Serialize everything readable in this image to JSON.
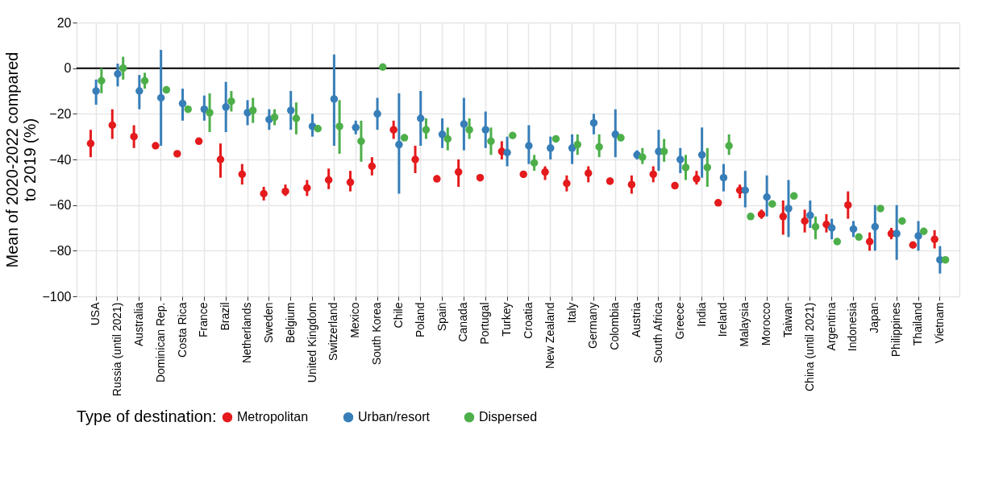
{
  "chart_data": {
    "type": "scatter",
    "ylabel": "Mean of 2020-2022 compared to 2019 (%)",
    "legend_title": "Type of destination:",
    "legend": "bottom",
    "grid": true,
    "marker": "circle",
    "ylim": [
      -100,
      20
    ],
    "yticks": [
      -100,
      -80,
      -60,
      -40,
      -20,
      0,
      20
    ],
    "ref_lines": [
      {
        "axis": "y",
        "value": 0,
        "color": "#000000"
      }
    ],
    "categories": [
      "USA",
      "Russia (until 2021)",
      "Australia",
      "Dominican Rep.",
      "Costa Rica",
      "France",
      "Brazil",
      "Netherlands",
      "Sweden",
      "Belgium",
      "United Kingdom",
      "Switzerland",
      "Mexico",
      "South Korea",
      "Chile",
      "Poland",
      "Spain",
      "Canada",
      "Portugal",
      "Turkey",
      "Croatia",
      "New Zealand",
      "Italy",
      "Germany",
      "Colombia",
      "Austria",
      "South Africa",
      "Greece",
      "India",
      "Ireland",
      "Malaysia",
      "Morocco",
      "Taiwan",
      "China (until 2021)",
      "Argentina",
      "Indonesia",
      "Japan",
      "Philippines",
      "Thailand",
      "Vietnam"
    ],
    "series": [
      {
        "name": "Metropolitan",
        "color": "#e41a1c",
        "values": [
          -33,
          -25,
          -30,
          -34,
          -37.5,
          -32,
          -40,
          -46.5,
          -55,
          -54,
          -52.5,
          -49,
          -50,
          -43,
          -27,
          -40,
          -48.5,
          -45.5,
          -48,
          -36.5,
          -46.5,
          -45.5,
          -50.5,
          -46,
          -49.5,
          -51,
          -46.5,
          -51.5,
          -48.5,
          -59,
          -53.5,
          -64,
          -65,
          -67,
          -68.5,
          -60,
          -76,
          -72.5,
          -77.5,
          -75
        ],
        "errors": [
          [
            -39,
            -27
          ],
          [
            -31,
            -18
          ],
          [
            -35,
            -25
          ],
          null,
          null,
          [
            -33,
            -31
          ],
          [
            -48,
            -33
          ],
          [
            -51,
            -42
          ],
          [
            -58,
            -52
          ],
          [
            -56,
            -51
          ],
          [
            -56,
            -49
          ],
          [
            -53,
            -44
          ],
          [
            -54,
            -45
          ],
          [
            -47,
            -39
          ],
          [
            -31,
            -23
          ],
          [
            -46,
            -34
          ],
          null,
          [
            -52,
            -40
          ],
          [
            -49,
            -47
          ],
          [
            -40,
            -32
          ],
          null,
          [
            -49,
            -43
          ],
          [
            -54,
            -47
          ],
          [
            -50,
            -43
          ],
          [
            -51,
            -48
          ],
          [
            -55,
            -47
          ],
          [
            -50,
            -43
          ],
          null,
          [
            -51,
            -45
          ],
          null,
          [
            -57,
            -51
          ],
          [
            -66,
            -62
          ],
          [
            -73,
            -58
          ],
          [
            -72,
            -62
          ],
          [
            -72,
            -64
          ],
          [
            -66,
            -54
          ],
          [
            -80,
            -72
          ],
          [
            -75,
            -70
          ],
          null,
          [
            -79,
            -71
          ]
        ]
      },
      {
        "name": "Urban/resort",
        "color": "#377eb8",
        "values": [
          -10,
          -2.5,
          -10,
          -13,
          -15.5,
          -18,
          -17,
          -19.5,
          -22.5,
          -18.5,
          -25.5,
          -13.5,
          -26,
          -20,
          -33.5,
          -22,
          -29,
          -24.5,
          -27,
          -37,
          -34,
          -35,
          -35,
          -24,
          -29,
          -38,
          -36.5,
          -40,
          -38,
          -48,
          -53.5,
          -56.5,
          -61.5,
          -64.5,
          -70,
          -70.5,
          -69.5,
          -72.5,
          -73.5,
          -84
        ],
        "errors": [
          [
            -16,
            -5
          ],
          [
            -8,
            2
          ],
          [
            -18,
            -3
          ],
          [
            -34,
            8
          ],
          [
            -23,
            -9
          ],
          [
            -23,
            -12
          ],
          [
            -28,
            -6
          ],
          [
            -25,
            -14
          ],
          [
            -27,
            -18
          ],
          [
            -27,
            -10
          ],
          [
            -30,
            -20
          ],
          [
            -34,
            6
          ],
          [
            -29,
            -23
          ],
          [
            -27,
            -13
          ],
          [
            -55,
            -11
          ],
          [
            -34,
            -10
          ],
          [
            -35,
            -22
          ],
          [
            -36,
            -13
          ],
          [
            -35,
            -19
          ],
          [
            -43,
            -30
          ],
          [
            -42,
            -25
          ],
          [
            -40,
            -30
          ],
          [
            -42,
            -29
          ],
          [
            -29,
            -20
          ],
          [
            -39,
            -18
          ],
          [
            -40,
            -36
          ],
          [
            -45,
            -27
          ],
          [
            -46,
            -35
          ],
          [
            -48,
            -26
          ],
          [
            -54,
            -42
          ],
          [
            -61,
            -45
          ],
          [
            -65,
            -47
          ],
          [
            -74,
            -49
          ],
          [
            -70,
            -58
          ],
          [
            -75,
            -66
          ],
          [
            -74,
            -67
          ],
          [
            -80,
            -60
          ],
          [
            -84,
            -60
          ],
          [
            -80,
            -67
          ],
          [
            -90,
            -78
          ]
        ]
      },
      {
        "name": "Dispersed",
        "color": "#4daf4a",
        "values": [
          -5.5,
          0,
          -5.5,
          -9.5,
          -18,
          -19.5,
          -14.5,
          -18.5,
          -21.5,
          -22,
          -26.5,
          -25.5,
          -32,
          0.5,
          -30.5,
          -27,
          -31,
          -27,
          -32,
          -29.5,
          -41.5,
          -31,
          -33.5,
          -34.5,
          -30.5,
          -39,
          -36.5,
          -43.5,
          -43.5,
          -34,
          -65,
          -59.5,
          -56,
          -69.5,
          -76,
          -74,
          -61.5,
          -67,
          -71.5,
          -84
        ],
        "errors": [
          [
            -11,
            0
          ],
          [
            -5,
            5
          ],
          [
            -9,
            -2
          ],
          null,
          null,
          [
            -28,
            -11
          ],
          [
            -19,
            -10
          ],
          [
            -24,
            -13
          ],
          [
            -25,
            -18
          ],
          [
            -29,
            -15
          ],
          [
            -28,
            -25
          ],
          [
            -37.5,
            -14
          ],
          [
            -41,
            -23
          ],
          null,
          null,
          [
            -31,
            -22
          ],
          [
            -36,
            -26
          ],
          [
            -31,
            -22
          ],
          [
            -38,
            -26
          ],
          null,
          [
            -45,
            -38
          ],
          null,
          [
            -38,
            -29
          ],
          [
            -39,
            -29
          ],
          null,
          [
            -42,
            -35
          ],
          [
            -41,
            -31
          ],
          [
            -49,
            -38
          ],
          [
            -52,
            -35
          ],
          [
            -38,
            -29
          ],
          null,
          null,
          null,
          [
            -75,
            -65
          ],
          null,
          null,
          null,
          null,
          null,
          null
        ]
      }
    ]
  }
}
